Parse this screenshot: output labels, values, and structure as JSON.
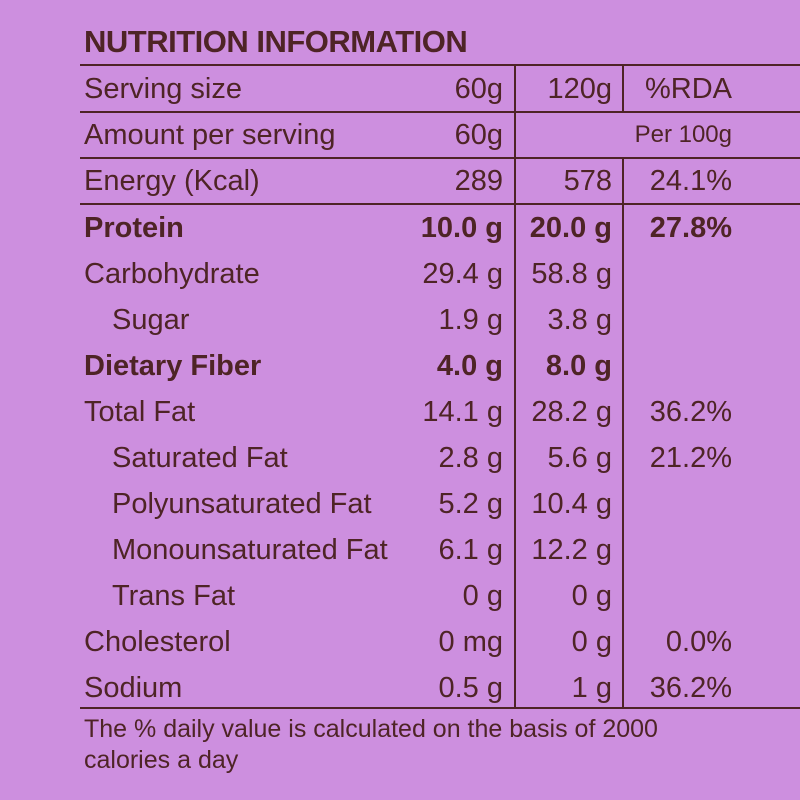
{
  "title": "NUTRITION INFORMATION",
  "header": {
    "serving_size": {
      "label": "Serving size",
      "col1": "60g",
      "col2": "120g",
      "col3": "%RDA"
    },
    "amount_per_serving": {
      "label": "Amount per serving",
      "col1": "60g",
      "col2": "",
      "col3": "Per 100g"
    },
    "energy": {
      "label": "Energy (Kcal)",
      "col1": "289",
      "col2": "578",
      "col3": "24.1%"
    }
  },
  "nutrients": [
    {
      "label": "Protein",
      "col1": "10.0 g",
      "col2": "20.0 g",
      "col3": "27.8%",
      "bold": true,
      "indent": false
    },
    {
      "label": "Carbohydrate",
      "col1": "29.4 g",
      "col2": "58.8 g",
      "col3": "",
      "bold": false,
      "indent": false
    },
    {
      "label": "Sugar",
      "col1": "1.9 g",
      "col2": "3.8 g",
      "col3": "",
      "bold": false,
      "indent": true
    },
    {
      "label": "Dietary Fiber",
      "col1": "4.0 g",
      "col2": "8.0 g",
      "col3": "",
      "bold": true,
      "indent": false
    },
    {
      "label": "Total Fat",
      "col1": "14.1 g",
      "col2": "28.2 g",
      "col3": "36.2%",
      "bold": false,
      "indent": false
    },
    {
      "label": "Saturated Fat",
      "col1": "2.8 g",
      "col2": "5.6 g",
      "col3": "21.2%",
      "bold": false,
      "indent": true
    },
    {
      "label": "Polyunsaturated Fat",
      "col1": "5.2 g",
      "col2": "10.4 g",
      "col3": "",
      "bold": false,
      "indent": true
    },
    {
      "label": "Monounsaturated Fat",
      "col1": "6.1 g",
      "col2": "12.2 g",
      "col3": "",
      "bold": false,
      "indent": true
    },
    {
      "label": "Trans Fat",
      "col1": "0 g",
      "col2": "0 g",
      "col3": "",
      "bold": false,
      "indent": true
    },
    {
      "label": "Cholesterol",
      "col1": "0 mg",
      "col2": "0 g",
      "col3": "0.0%",
      "bold": false,
      "indent": false
    },
    {
      "label": "Sodium",
      "col1": "0.5 g",
      "col2": "1 g",
      "col3": "36.2%",
      "bold": false,
      "indent": false
    }
  ],
  "footer": "The % daily value is calculated on the basis of 2000 calories a day",
  "colors": {
    "background": "#cd8fdf",
    "text": "#4e2426"
  }
}
